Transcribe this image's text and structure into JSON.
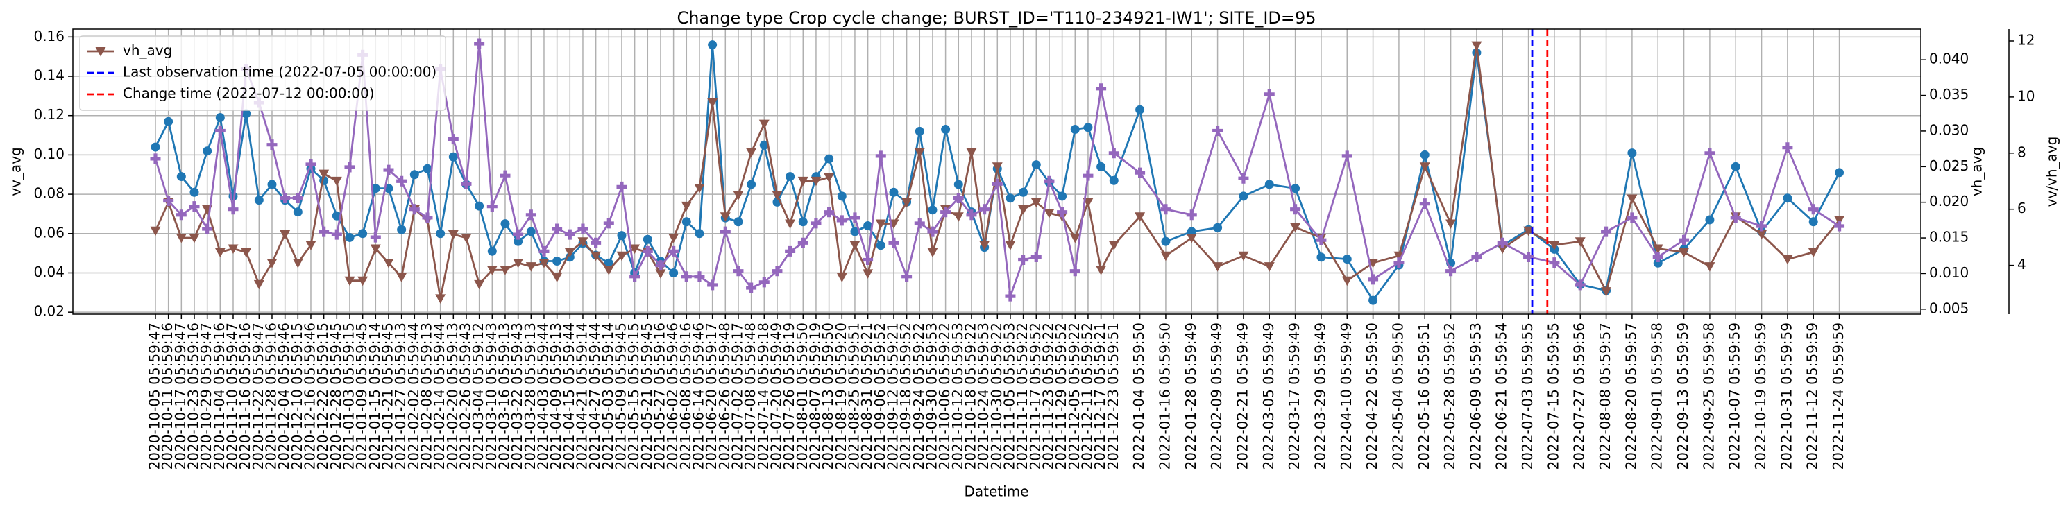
{
  "chart_data": {
    "type": "line",
    "title": "Change type Crop cycle change; BURST_ID='T110-234921-IW1'; SITE_ID=95",
    "xlabel": "Datetime",
    "ylabel": "vv_avg",
    "y2label": "vh_avg",
    "y3label": "vv/vh_avg",
    "x": [
      "2020-10-05 05:59:47",
      "2020-10-11 05:59:16",
      "2020-10-17 05:59:47",
      "2020-10-23 05:59:16",
      "2020-10-29 05:59:47",
      "2020-11-04 05:59:16",
      "2020-11-10 05:59:47",
      "2020-11-16 05:59:16",
      "2020-11-22 05:59:47",
      "2020-11-28 05:59:16",
      "2020-12-04 05:59:46",
      "2020-12-10 05:59:15",
      "2020-12-16 05:59:46",
      "2020-12-22 05:59:15",
      "2020-12-28 05:59:45",
      "2021-01-03 05:59:15",
      "2021-01-09 05:59:45",
      "2021-01-15 05:59:14",
      "2021-01-21 05:59:45",
      "2021-01-27 05:59:13",
      "2021-02-02 05:59:44",
      "2021-02-08 05:59:13",
      "2021-02-14 05:59:44",
      "2021-02-20 05:59:13",
      "2021-02-26 05:59:43",
      "2021-03-04 05:59:12",
      "2021-03-10 05:59:43",
      "2021-03-16 05:59:13",
      "2021-03-22 05:59:43",
      "2021-03-28 05:59:13",
      "2021-04-03 05:59:44",
      "2021-04-09 05:59:13",
      "2021-04-15 05:59:44",
      "2021-04-21 05:59:14",
      "2021-04-27 05:59:44",
      "2021-05-03 05:59:14",
      "2021-05-09 05:59:45",
      "2021-05-15 05:59:15",
      "2021-05-21 05:59:45",
      "2021-05-27 05:59:16",
      "2021-06-02 05:59:46",
      "2021-06-08 05:59:16",
      "2021-06-14 05:59:46",
      "2021-06-20 05:59:17",
      "2021-06-26 05:59:48",
      "2021-07-02 05:59:17",
      "2021-07-08 05:59:48",
      "2021-07-14 05:59:18",
      "2021-07-20 05:59:49",
      "2021-07-26 05:59:19",
      "2021-08-01 05:59:50",
      "2021-08-07 05:59:19",
      "2021-08-13 05:59:50",
      "2021-08-19 05:59:20",
      "2021-08-25 05:59:51",
      "2021-08-31 05:59:21",
      "2021-09-06 05:59:52",
      "2021-09-12 05:59:21",
      "2021-09-18 05:59:52",
      "2021-09-24 05:59:22",
      "2021-09-30 05:59:53",
      "2021-10-06 05:59:22",
      "2021-10-12 05:59:53",
      "2021-10-18 05:59:22",
      "2021-10-24 05:59:53",
      "2021-10-30 05:59:22",
      "2021-11-05 05:59:53",
      "2021-11-11 05:59:22",
      "2021-11-17 05:59:52",
      "2021-11-23 05:59:22",
      "2021-11-29 05:59:52",
      "2021-12-05 05:59:22",
      "2021-12-11 05:59:52",
      "2021-12-17 05:59:21",
      "2021-12-23 05:59:51",
      "2022-01-04 05:59:50",
      "2022-01-16 05:59:50",
      "2022-01-28 05:59:49",
      "2022-02-09 05:59:49",
      "2022-02-21 05:59:49",
      "2022-03-05 05:59:49",
      "2022-03-17 05:59:49",
      "2022-03-29 05:59:49",
      "2022-04-10 05:59:49",
      "2022-04-22 05:59:50",
      "2022-05-04 05:59:50",
      "2022-05-16 05:59:51",
      "2022-05-28 05:59:52",
      "2022-06-09 05:59:53",
      "2022-06-21 05:59:54",
      "2022-07-03 05:59:55",
      "2022-07-15 05:59:55",
      "2022-07-27 05:59:56",
      "2022-08-08 05:59:57",
      "2022-08-20 05:59:57",
      "2022-09-01 05:59:58",
      "2022-09-13 05:59:59",
      "2022-09-25 05:59:58",
      "2022-10-07 05:59:59",
      "2022-10-19 05:59:59",
      "2022-10-31 05:59:59",
      "2022-11-12 05:59:59",
      "2022-11-24 05:59:59"
    ],
    "xlim": [
      "2020-08-28 00:00:00",
      "2023-01-01 00:00:00"
    ],
    "ylim": [
      0.019,
      0.164
    ],
    "yticks": [
      0.02,
      0.04,
      0.06,
      0.08,
      {
        "value": 0.1,
        "label": "0.10"
      },
      0.12,
      0.14,
      0.16
    ],
    "y2lim": [
      0.0043,
      0.0443
    ],
    "y2ticks": [
      0.005,
      {
        "value": 0.01,
        "label": "0.010"
      },
      0.015,
      {
        "value": 0.02,
        "label": "0.020"
      },
      0.025,
      {
        "value": 0.03,
        "label": "0.030"
      },
      0.035,
      {
        "value": 0.04,
        "label": "0.040"
      }
    ],
    "y3lim": [
      2.26,
      12.42
    ],
    "y3ticks": [
      4,
      6,
      8,
      10,
      12
    ],
    "grid": true,
    "legend_loc": "upper left",
    "series": [
      {
        "name": "vv_avg",
        "color": "#1f77b4",
        "axis": "y",
        "marker": "circle",
        "legend": false,
        "values": [
          0.104,
          0.117,
          0.089,
          0.081,
          0.102,
          0.119,
          0.079,
          0.121,
          0.077,
          0.085,
          0.077,
          0.071,
          0.093,
          0.087,
          0.069,
          0.058,
          0.06,
          0.083,
          0.083,
          0.062,
          0.09,
          0.093,
          0.06,
          0.099,
          0.085,
          0.074,
          0.051,
          0.065,
          0.056,
          0.061,
          0.046,
          0.046,
          0.048,
          0.055,
          0.049,
          0.045,
          0.059,
          0.04,
          0.057,
          0.046,
          0.04,
          0.066,
          0.06,
          0.156,
          0.068,
          0.066,
          0.085,
          0.105,
          0.076,
          0.089,
          0.066,
          0.089,
          0.098,
          0.079,
          0.061,
          0.064,
          0.054,
          0.081,
          0.076,
          0.112,
          0.072,
          0.113,
          0.085,
          0.071,
          0.053,
          0.093,
          0.078,
          0.081,
          0.095,
          0.086,
          0.079,
          0.113,
          0.114,
          0.094,
          0.087,
          0.123,
          0.056,
          0.061,
          0.063,
          0.079,
          0.085,
          0.083,
          0.048,
          0.047,
          0.026,
          0.044,
          0.1,
          0.045,
          0.152,
          0.054,
          0.062,
          0.052,
          0.034,
          0.031,
          0.101,
          0.045,
          0.052,
          0.067,
          0.094,
          0.061,
          0.078,
          0.066,
          0.091
        ]
      },
      {
        "name": "vh_avg",
        "color": "#8c564b",
        "axis": "y2",
        "marker": "triangle-down",
        "legend": true,
        "values": [
          0.016,
          0.02,
          0.015,
          0.015,
          0.019,
          0.013,
          0.0135,
          0.013,
          0.0085,
          0.0115,
          0.0155,
          0.0115,
          0.014,
          0.024,
          0.023,
          0.009,
          0.009,
          0.0135,
          0.0115,
          0.0095,
          0.019,
          0.0175,
          0.0065,
          0.0155,
          0.015,
          0.0085,
          0.0105,
          0.0105,
          0.0115,
          0.011,
          0.0115,
          0.0095,
          0.013,
          0.0145,
          0.0125,
          0.0105,
          0.0125,
          0.0135,
          0.013,
          0.01,
          0.015,
          0.0195,
          0.022,
          0.034,
          0.018,
          0.021,
          0.027,
          0.031,
          0.021,
          0.017,
          0.023,
          0.023,
          0.0235,
          0.0095,
          0.014,
          0.01,
          0.017,
          0.017,
          0.02,
          0.027,
          0.013,
          0.019,
          0.018,
          0.027,
          0.014,
          0.025,
          0.014,
          0.019,
          0.02,
          0.0185,
          0.018,
          0.015,
          0.02,
          0.0105,
          0.014,
          0.018,
          0.0125,
          0.015,
          0.011,
          0.0125,
          0.011,
          0.0165,
          0.015,
          0.009,
          0.0115,
          0.0125,
          0.025,
          0.017,
          0.042,
          0.0135,
          0.016,
          0.014,
          0.0145,
          0.0075,
          0.0205,
          0.0135,
          0.013,
          0.011,
          0.018,
          0.0155,
          0.012,
          0.013,
          0.0175
        ]
      },
      {
        "name": "vv/vh_avg",
        "color": "#9467bd",
        "axis": "y3",
        "marker": "plus",
        "legend": false,
        "values": [
          7.8,
          6.3,
          5.8,
          6.1,
          5.3,
          8.8,
          6.0,
          11.0,
          9.8,
          8.3,
          6.4,
          6.4,
          7.6,
          5.2,
          5.1,
          7.5,
          11.5,
          5.0,
          7.4,
          7.0,
          6.0,
          5.7,
          11.0,
          8.5,
          6.9,
          11.9,
          6.1,
          7.2,
          5.1,
          5.8,
          4.5,
          5.3,
          5.1,
          5.3,
          4.8,
          5.5,
          6.8,
          3.6,
          4.5,
          4.0,
          4.5,
          3.6,
          3.6,
          3.3,
          5.2,
          3.8,
          3.2,
          3.4,
          3.8,
          4.5,
          4.8,
          5.5,
          5.9,
          5.6,
          5.7,
          4.2,
          7.9,
          4.8,
          3.6,
          5.5,
          5.2,
          5.9,
          6.4,
          5.8,
          6.0,
          6.9,
          2.9,
          4.2,
          4.3,
          7.0,
          5.9,
          3.8,
          7.2,
          10.3,
          8.0,
          7.3,
          6.0,
          5.8,
          8.8,
          7.1,
          10.1,
          6.0,
          4.9,
          7.9,
          3.5,
          4.1,
          6.2,
          3.8,
          4.3,
          4.8,
          4.3,
          4.1,
          3.3,
          5.2,
          5.7,
          4.3,
          4.9,
          8.0,
          5.7,
          5.4,
          8.2,
          6.0,
          5.4
        ]
      }
    ],
    "vlines": [
      {
        "name": "Last observation time (2022-07-05 00:00:00)",
        "x": "2022-07-05 00:00:00",
        "color": "#0000ff"
      },
      {
        "name": "Change time (2022-07-12 00:00:00)",
        "x": "2022-07-12 00:00:00",
        "color": "#ff0000"
      }
    ]
  }
}
